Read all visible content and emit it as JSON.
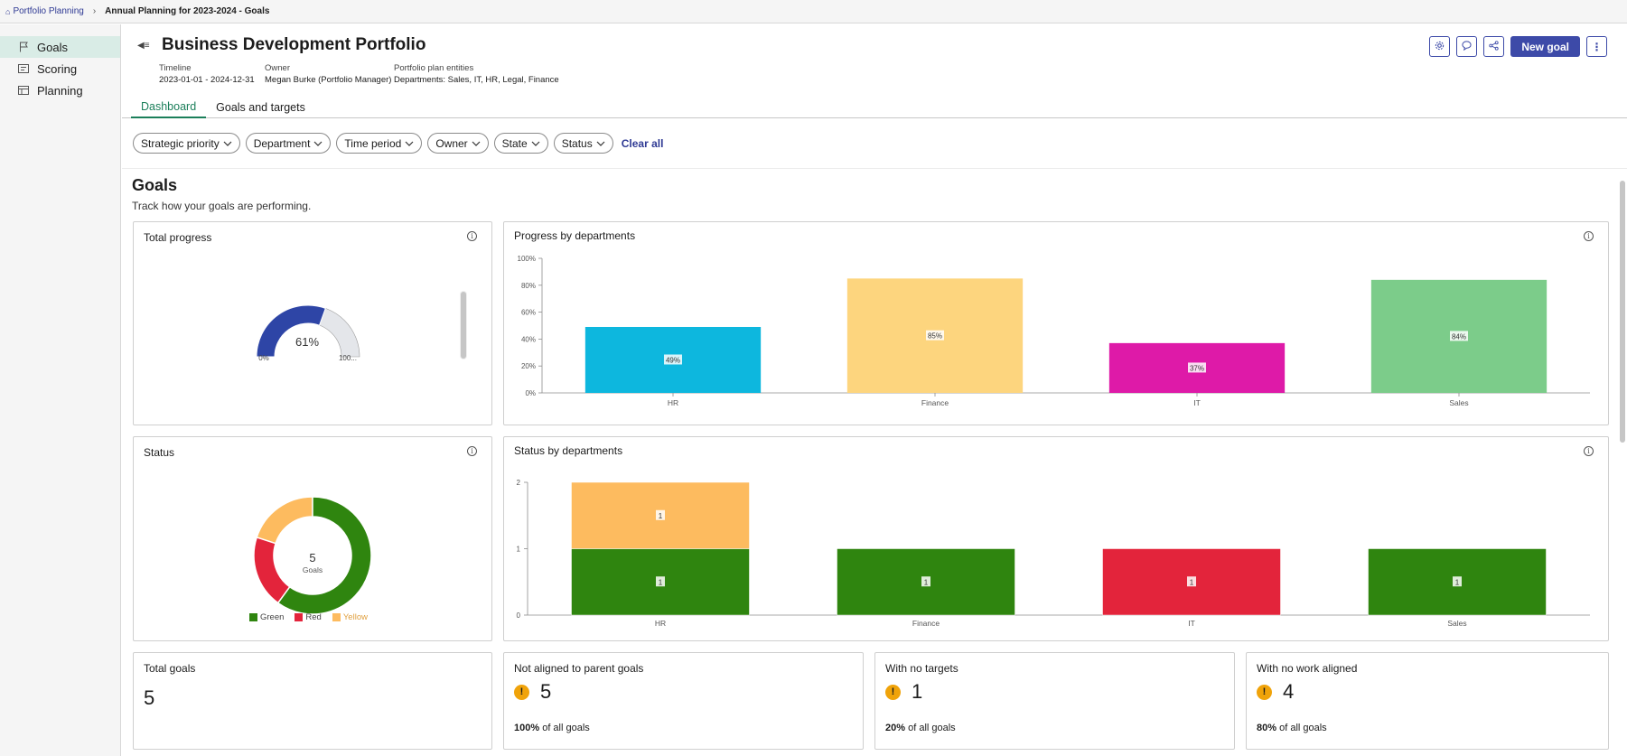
{
  "breadcrumb": {
    "root": "Portfolio Planning",
    "current": "Annual Planning for 2023-2024 - Goals"
  },
  "sidebar": {
    "items": [
      {
        "label": "Goals",
        "icon": "flag-icon",
        "active": true
      },
      {
        "label": "Scoring",
        "icon": "scoring-icon",
        "active": false
      },
      {
        "label": "Planning",
        "icon": "planning-icon",
        "active": false
      }
    ]
  },
  "header": {
    "title": "Business Development Portfolio",
    "timeline_label": "Timeline",
    "timeline_value": "2023-01-01 - 2024-12-31",
    "owner_label": "Owner",
    "owner_value": "Megan Burke (Portfolio Manager)",
    "entities_label": "Portfolio plan entities",
    "entities_value": "Departments: Sales, IT, HR, Legal, Finance",
    "new_goal_label": "New goal"
  },
  "tabs": [
    {
      "label": "Dashboard",
      "active": true
    },
    {
      "label": "Goals and targets",
      "active": false
    }
  ],
  "filters": {
    "items": [
      "Strategic priority",
      "Department",
      "Time period",
      "Owner",
      "State",
      "Status"
    ],
    "clear_all": "Clear all"
  },
  "goals_section": {
    "title": "Goals",
    "subtitle": "Track how your goals are performing."
  },
  "colors": {
    "accent": "#3d4aa8",
    "tab_active": "#1b7f5a",
    "gauge_fill": "#2e45a6",
    "green": "#2f850f",
    "red": "#e3243b",
    "yellow": "#fdbb5f"
  },
  "total_progress": {
    "title": "Total progress",
    "value_label": "61%",
    "fraction": 0.61,
    "min_label": "0%",
    "max_label": "100..."
  },
  "progress_by_departments": {
    "title": "Progress by departments",
    "chart_data": {
      "type": "bar",
      "categories": [
        "HR",
        "Finance",
        "IT",
        "Sales"
      ],
      "values": [
        49,
        85,
        37,
        84
      ],
      "data_labels": [
        "49%",
        "85%",
        "37%",
        "84%"
      ],
      "colors": [
        "#0db7de",
        "#fdd57e",
        "#de1aa8",
        "#7ccc8a"
      ],
      "y_ticks": [
        "0%",
        "20%",
        "40%",
        "60%",
        "80%",
        "100%"
      ],
      "ylim": [
        0,
        100
      ]
    }
  },
  "status": {
    "title": "Status",
    "center_value": "5",
    "center_label": "Goals",
    "chart_data": {
      "type": "pie",
      "categories": [
        "Green",
        "Red",
        "Yellow"
      ],
      "values": [
        3,
        1,
        1
      ],
      "colors": [
        "#2f850f",
        "#e3243b",
        "#fdbb5f"
      ]
    },
    "legend": [
      "Green",
      "Red",
      "Yellow"
    ]
  },
  "status_by_departments": {
    "title": "Status by departments",
    "chart_data": {
      "type": "bar",
      "stacked": true,
      "categories": [
        "HR",
        "Finance",
        "IT",
        "Sales"
      ],
      "series": [
        {
          "name": "Green",
          "values": [
            1,
            1,
            0,
            1
          ],
          "color": "#2f850f"
        },
        {
          "name": "Red",
          "values": [
            0,
            0,
            1,
            0
          ],
          "color": "#e3243b"
        },
        {
          "name": "Yellow",
          "values": [
            1,
            0,
            0,
            0
          ],
          "color": "#fdbb5f"
        }
      ],
      "y_ticks": [
        "0",
        "1",
        "2"
      ],
      "ylim": [
        0,
        2
      ]
    }
  },
  "kpis": [
    {
      "title": "Total goals",
      "value": "5",
      "warning": false,
      "pct": "",
      "foot": ""
    },
    {
      "title": "Not aligned to parent goals",
      "value": "5",
      "warning": true,
      "pct": "100%",
      "foot": "of all goals"
    },
    {
      "title": "With no targets",
      "value": "1",
      "warning": true,
      "pct": "20%",
      "foot": "of all goals"
    },
    {
      "title": "With no work aligned",
      "value": "4",
      "warning": true,
      "pct": "80%",
      "foot": "of all goals"
    }
  ]
}
